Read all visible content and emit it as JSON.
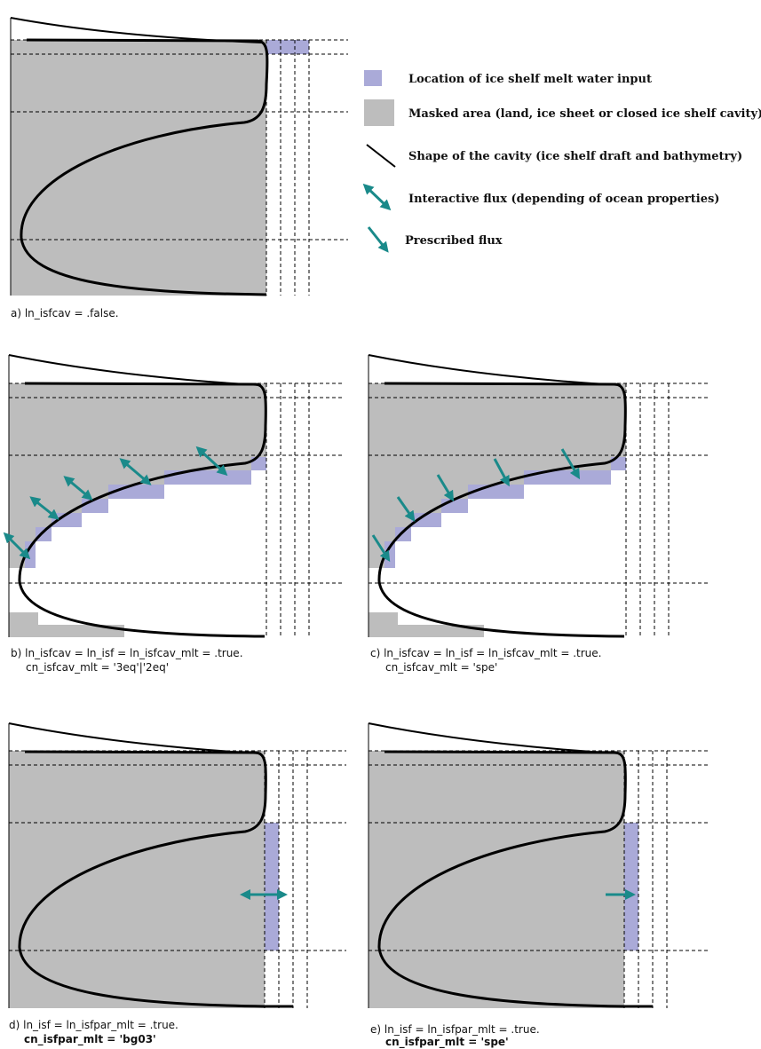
{
  "legend": {
    "melt_input": "Location of ice shelf melt water input",
    "masked_area": "Masked area (land, ice sheet or closed ice shelf cavity)",
    "cavity_shape": "Shape of the cavity (ice shelf draft and bathymetry)",
    "interactive_flux": "Interactive flux (depending of ocean properties)",
    "prescribed_flux": "Prescribed flux"
  },
  "colors": {
    "mask": "#bdbdbd",
    "melt": "#aaaad8",
    "flux": "#1a8a8a",
    "line": "#000000"
  },
  "panels": {
    "a": {
      "line1": "a) ln_isfcav = .false."
    },
    "b": {
      "line1": "b) ln_isfcav = ln_isf = ln_isfcav_mlt = .true.",
      "line2": "cn_isfcav_mlt = '3eq'|'2eq'"
    },
    "c": {
      "line1": "c) ln_isfcav = ln_isf = ln_isfcav_mlt = .true.",
      "line2": "cn_isfcav_mlt = 'spe'"
    },
    "d": {
      "line1": "d) ln_isf = ln_isfpar_mlt = .true.",
      "line2": "cn_isfpar_mlt = 'bg03'"
    },
    "e": {
      "line1": "e) ln_isf = ln_isfpar_mlt = .true.",
      "line2": "cn_isfpar_mlt = 'spe'"
    }
  }
}
